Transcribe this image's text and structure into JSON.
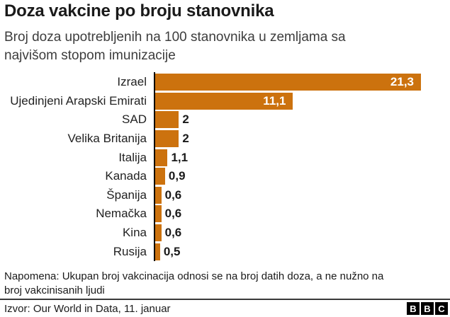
{
  "header": {
    "title": "Doza vakcine po broju stanovnika",
    "subtitle_lines": [
      "Broj doza upotrebljenih na 100 stanovnika u zemljama sa",
      "najvišom stopom imunizacije"
    ]
  },
  "chart_data": {
    "type": "bar",
    "orientation": "horizontal",
    "title": "Doza vakcine po broju stanovnika",
    "subtitle": "Broj doza upotrebljenih na 100 stanovnika u zemljama sa najvišom stopom imunizacije",
    "categories": [
      "Izrael",
      "Ujedinjeni Arapski Emirati",
      "SAD",
      "Velika Britanija",
      "Italija",
      "Kanada",
      "Španija",
      "Nemačka",
      "Kina",
      "Rusija"
    ],
    "values": [
      21.3,
      11.1,
      2,
      2,
      1.1,
      0.9,
      0.6,
      0.6,
      0.6,
      0.5
    ],
    "value_labels": [
      "21,3",
      "11,1",
      "2",
      "2",
      "1,1",
      "0,9",
      "0,6",
      "0,6",
      "0,6",
      "0,5"
    ],
    "xlabel": "",
    "ylabel": "",
    "xlim": [
      0,
      22.5
    ],
    "grid": false,
    "legend": "none",
    "bar_color": "#cc720e",
    "axis_color": "#000000",
    "inside_label_color": "#ffffff",
    "outside_label_color": "#1a1a1a"
  },
  "footer": {
    "note_lines": [
      "Napomena: Ukupan broj vakcinacija odnosi se na broj datih doza, a ne nužno na",
      "broj vakcinisanih ljudi"
    ],
    "source": "Izvor: Our World in Data, 11. januar",
    "logo_letters": [
      "B",
      "B",
      "C"
    ]
  }
}
